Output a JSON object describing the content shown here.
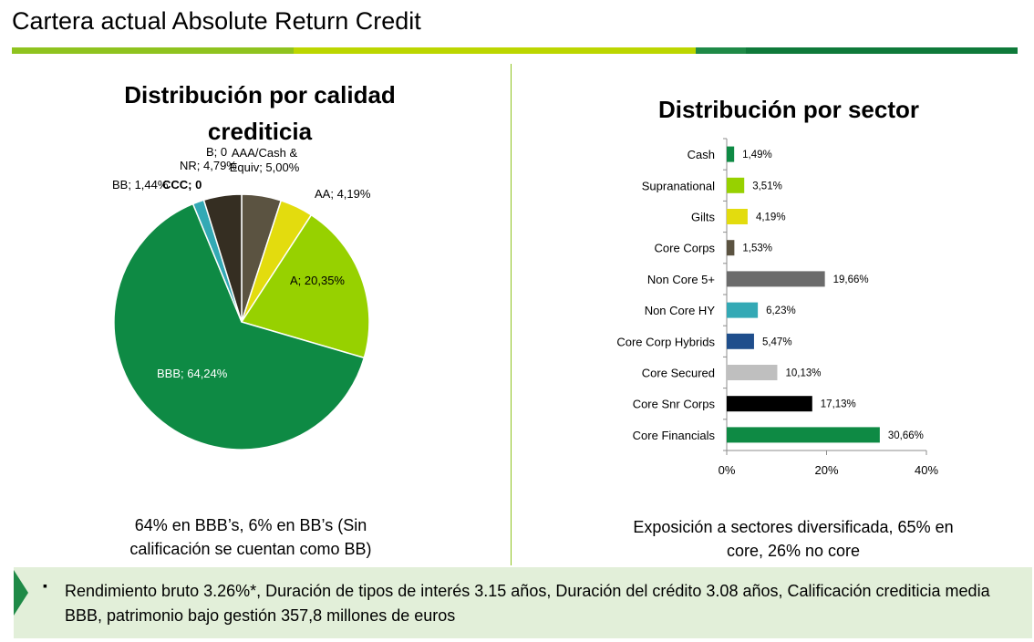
{
  "page": {
    "title": "Cartera actual Absolute Return Credit",
    "bar_colors": [
      "#8fc31f",
      "#bcd600",
      "#1f8a47",
      "#0f7a3a"
    ]
  },
  "pie_caption": "64% en BBB’s,  6% en BB’s (Sin calificación se cuentan como BB)",
  "bar_caption": "Exposición a sectores diversificada, 65% en core, 26% no core",
  "footer": {
    "bullet": "▪",
    "text": "Rendimiento bruto 3.26%*, Duración de tipos de interés 3.15 años, Duración del crédito 3.08 años, Calificación crediticia media BBB, patrimonio bajo gestión 357,8 millones de euros"
  },
  "chart_data": [
    {
      "type": "pie",
      "title": "Distribución por calidad crediticia",
      "slices": [
        {
          "name": "AAA/Cash & Equiv",
          "value": 5.0,
          "label": "AAA/Cash & Equiv; 5,00%",
          "color": "#5b5341"
        },
        {
          "name": "AA",
          "value": 4.19,
          "label": "AA; 4,19%",
          "color": "#e3dc0e"
        },
        {
          "name": "A",
          "value": 20.35,
          "label": "A; 20,35%",
          "color": "#97d100"
        },
        {
          "name": "BBB",
          "value": 64.24,
          "label": "BBB; 64,24%",
          "color": "#0e8a44"
        },
        {
          "name": "BB",
          "value": 1.44,
          "label": "BB; 1,44%",
          "color": "#33a9b5"
        },
        {
          "name": "CCC",
          "value": 0,
          "label": "CCC; 0",
          "color": "#1f3f8a"
        },
        {
          "name": "B",
          "value": 0,
          "label": "B; 0",
          "color": "#bfbfbf"
        },
        {
          "name": "NR",
          "value": 4.79,
          "label": "NR; 4,79%",
          "color": "#352e22"
        }
      ]
    },
    {
      "type": "bar",
      "orientation": "horizontal",
      "title": "Distribución por sector",
      "categories": [
        "Cash",
        "Supranational",
        "Gilts",
        "Core Corps",
        "Non Core 5+",
        "Non Core HY",
        "Core Corp Hybrids",
        "Core Secured",
        "Core Snr Corps",
        "Core Financials"
      ],
      "values": [
        1.49,
        3.51,
        4.19,
        1.53,
        19.66,
        6.23,
        5.47,
        10.13,
        17.13,
        30.66
      ],
      "value_labels": [
        "1,49%",
        "3,51%",
        "4,19%",
        "1,53%",
        "19,66%",
        "6,23%",
        "5,47%",
        "10,13%",
        "17,13%",
        "30,66%"
      ],
      "colors": [
        "#0e8a44",
        "#97d100",
        "#e3dc0e",
        "#5b5341",
        "#6b6b6b",
        "#33a9b5",
        "#1f4e8c",
        "#bfbfbf",
        "#000000",
        "#0e8a44"
      ],
      "xlim": [
        0,
        40
      ],
      "xticks": [
        0,
        20,
        40
      ],
      "xtick_labels": [
        "0%",
        "20%",
        "40%"
      ]
    }
  ]
}
